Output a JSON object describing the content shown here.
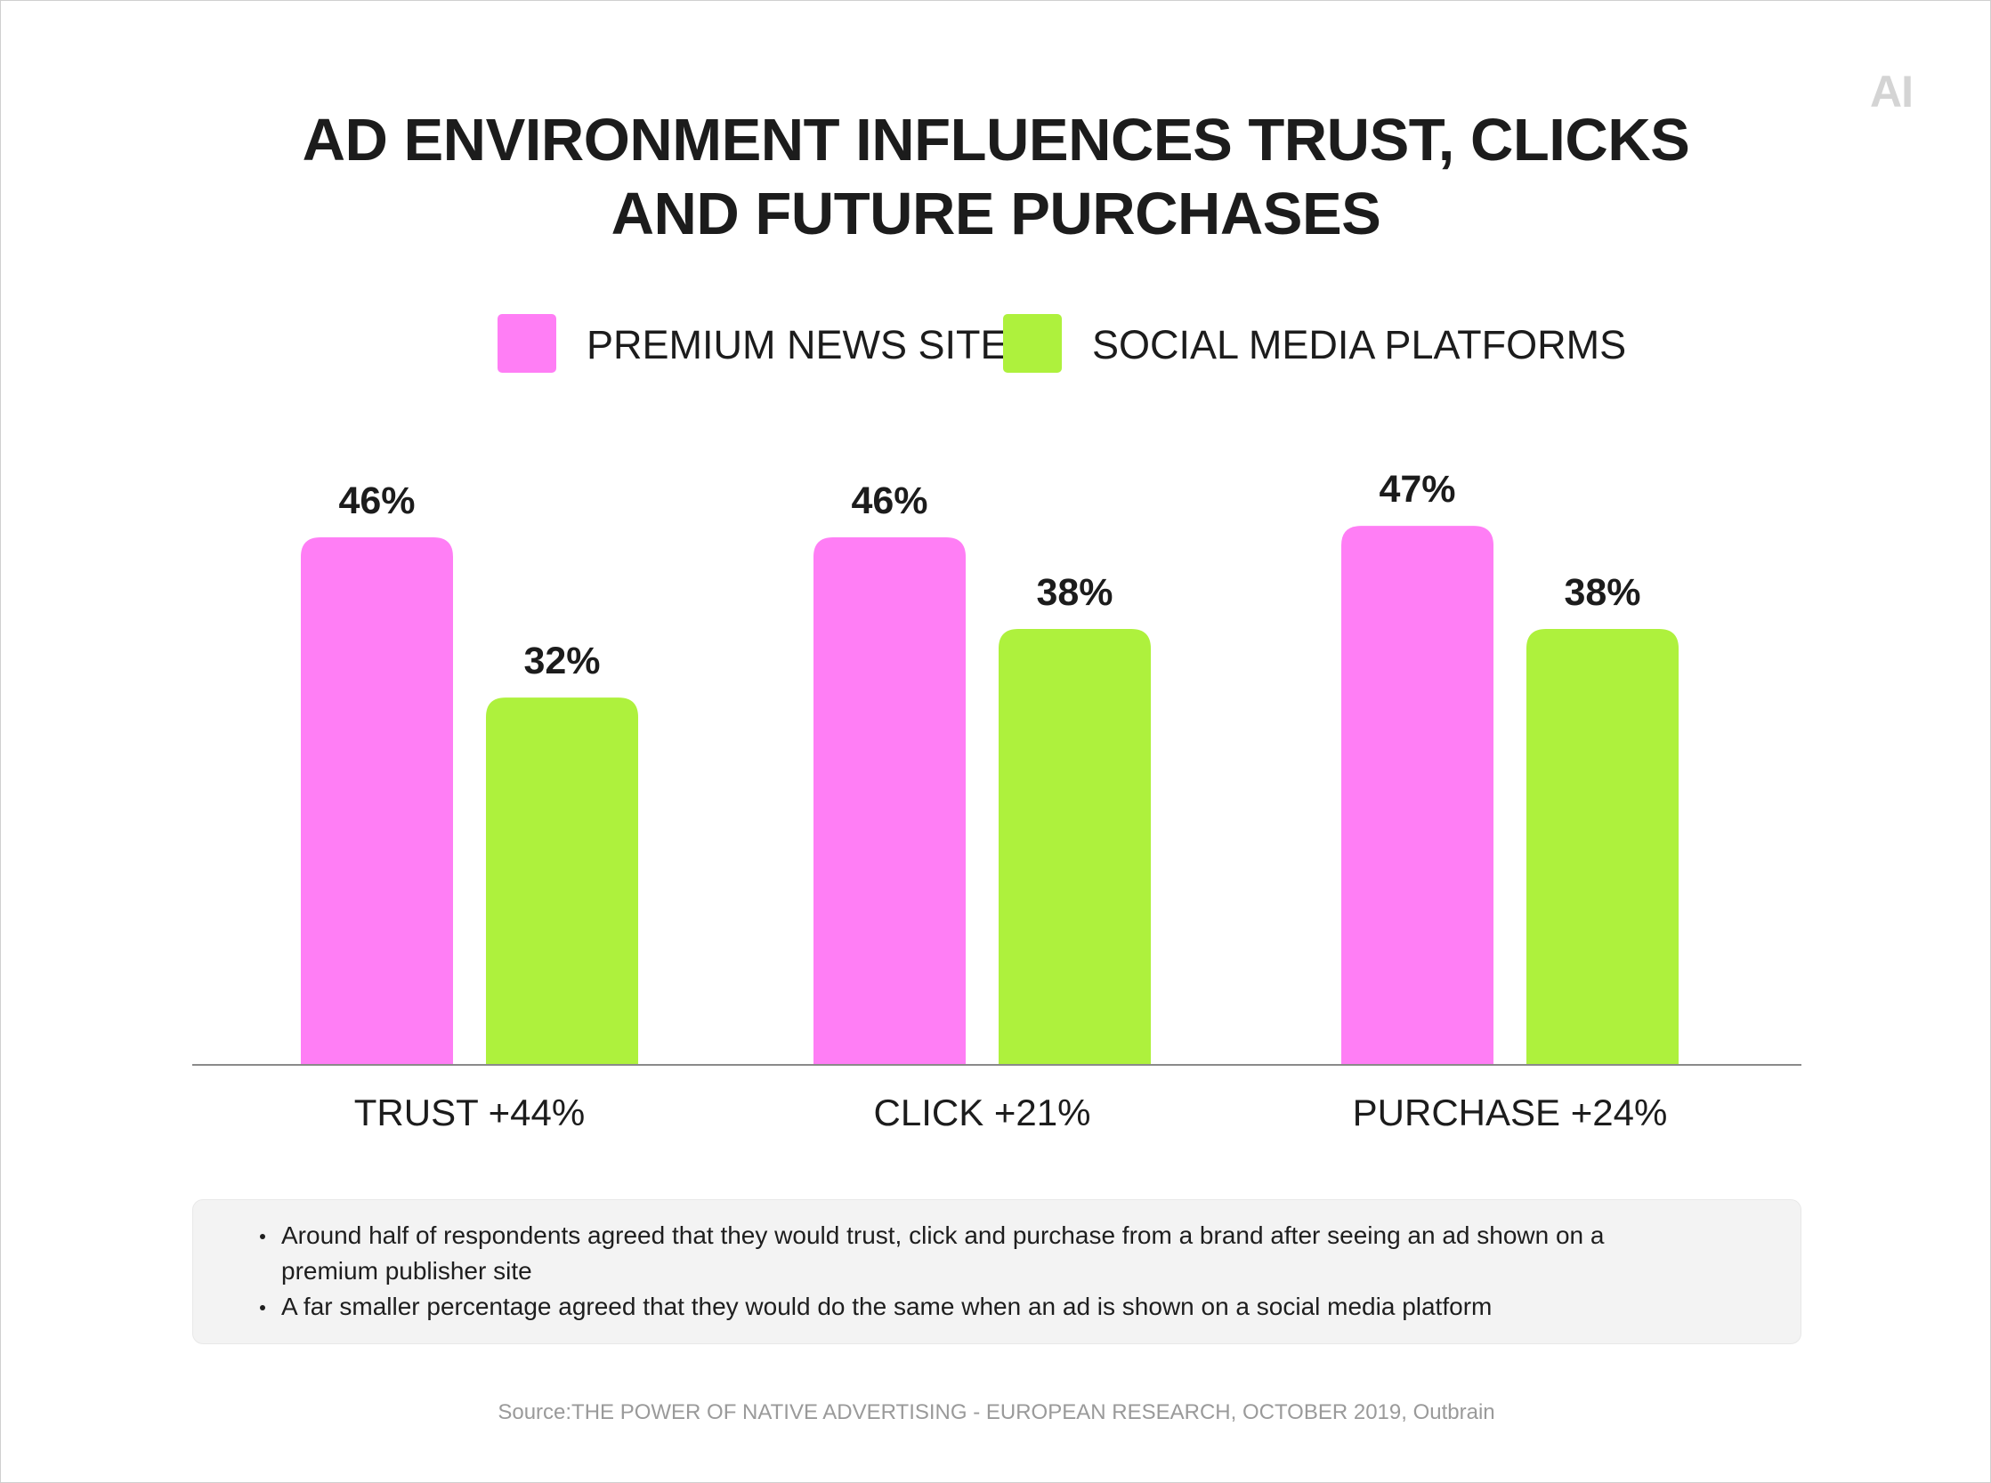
{
  "logo": "AI",
  "title_lines": [
    "AD ENVIRONMENT INFLUENCES TRUST, CLICKS",
    "AND FUTURE PURCHASES"
  ],
  "legend": [
    {
      "label": "PREMIUM NEWS SITES",
      "color": "#ff7ef5"
    },
    {
      "label": "SOCIAL MEDIA PLATFORMS",
      "color": "#aef13d"
    }
  ],
  "chart_data": {
    "type": "bar",
    "title": "AD ENVIRONMENT INFLUENCES TRUST, CLICKS AND FUTURE PURCHASES",
    "categories": [
      "TRUST +44%",
      "CLICK +21%",
      "PURCHASE +24%"
    ],
    "series": [
      {
        "name": "PREMIUM NEWS SITES",
        "values": [
          46,
          46,
          47
        ],
        "labels": [
          "46%",
          "46%",
          "47%"
        ],
        "color": "#ff7ef5"
      },
      {
        "name": "SOCIAL MEDIA PLATFORMS",
        "values": [
          32,
          38,
          38
        ],
        "labels": [
          "32%",
          "38%",
          "38%"
        ],
        "color": "#aef13d"
      }
    ],
    "xlabel": "",
    "ylabel": "",
    "ylim": [
      0,
      50
    ],
    "grid": false,
    "legend_position": "top"
  },
  "notes": [
    "Around half of respondents agreed that they would trust, click and purchase from a brand after seeing an ad shown on a premium publisher site",
    "A far smaller percentage agreed that they would do the same when an ad is shown on a social media platform"
  ],
  "source": "Source:THE POWER OF NATIVE ADVERTISING - EUROPEAN RESEARCH, OCTOBER 2019, Outbrain",
  "axis_color": "#8a8a8a"
}
